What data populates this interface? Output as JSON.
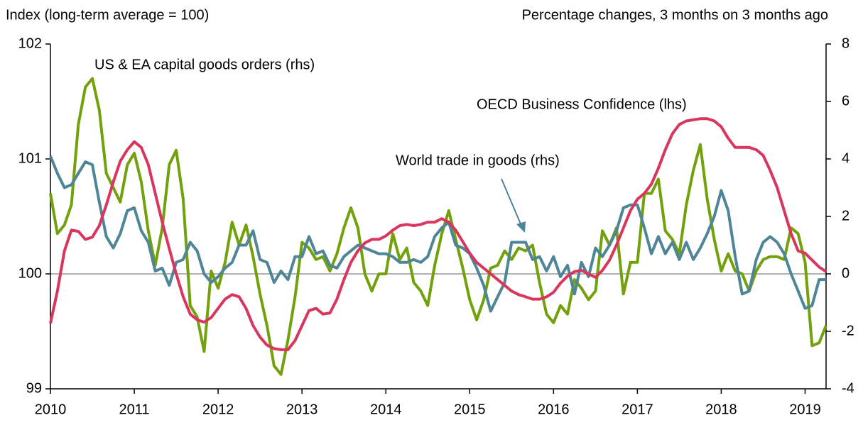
{
  "chart_data": {
    "type": "line",
    "left_axis_label": "Index (long-term average = 100)",
    "right_axis_label": "Percentage changes, 3 months on 3 months ago",
    "x": [
      2010,
      2010.083,
      2010.167,
      2010.25,
      2010.333,
      2010.417,
      2010.5,
      2010.583,
      2010.667,
      2010.75,
      2010.833,
      2010.917,
      2011,
      2011.083,
      2011.167,
      2011.25,
      2011.333,
      2011.417,
      2011.5,
      2011.583,
      2011.667,
      2011.75,
      2011.833,
      2011.917,
      2012,
      2012.083,
      2012.167,
      2012.25,
      2012.333,
      2012.417,
      2012.5,
      2012.583,
      2012.667,
      2012.75,
      2012.833,
      2012.917,
      2013,
      2013.083,
      2013.167,
      2013.25,
      2013.333,
      2013.417,
      2013.5,
      2013.583,
      2013.667,
      2013.75,
      2013.833,
      2013.917,
      2014,
      2014.083,
      2014.167,
      2014.25,
      2014.333,
      2014.417,
      2014.5,
      2014.583,
      2014.667,
      2014.75,
      2014.833,
      2014.917,
      2015,
      2015.083,
      2015.167,
      2015.25,
      2015.333,
      2015.417,
      2015.5,
      2015.583,
      2015.667,
      2015.75,
      2015.833,
      2015.917,
      2016,
      2016.083,
      2016.167,
      2016.25,
      2016.333,
      2016.417,
      2016.5,
      2016.583,
      2016.667,
      2016.75,
      2016.833,
      2016.917,
      2017,
      2017.083,
      2017.167,
      2017.25,
      2017.333,
      2017.417,
      2017.5,
      2017.583,
      2017.667,
      2017.75,
      2017.833,
      2017.917,
      2018,
      2018.083,
      2018.167,
      2018.25,
      2018.333,
      2018.417,
      2018.5,
      2018.583,
      2018.667,
      2018.75,
      2018.833,
      2018.917,
      2019,
      2019.083,
      2019.167,
      2019.25
    ],
    "series": [
      {
        "name": "US & EA capital goods orders (rhs)",
        "color": "#72a10b",
        "axis": "y2",
        "values": [
          2.8,
          1.4,
          1.7,
          2.4,
          5.2,
          6.5,
          6.8,
          5.7,
          3.5,
          3.0,
          2.5,
          3.8,
          4.2,
          3.2,
          1.5,
          0.3,
          1.6,
          3.8,
          4.3,
          2.6,
          -1.1,
          -1.5,
          -2.7,
          0.1,
          -0.5,
          0.4,
          1.8,
          1.0,
          1.7,
          0.6,
          -0.7,
          -1.8,
          -3.2,
          -3.5,
          -2.3,
          -0.8,
          1.1,
          0.9,
          0.5,
          0.6,
          0.1,
          0.7,
          1.6,
          2.3,
          1.6,
          0.0,
          -0.6,
          0.0,
          0.0,
          1.4,
          0.5,
          0.9,
          -0.3,
          -0.6,
          -1.1,
          0.3,
          1.4,
          2.2,
          1.2,
          0.2,
          -0.9,
          -1.6,
          -0.9,
          0.2,
          0.3,
          0.8,
          0.5,
          0.9,
          0.8,
          1.0,
          -0.3,
          -1.4,
          -1.7,
          -1.1,
          -1.4,
          -0.2,
          -0.5,
          -0.9,
          -0.6,
          1.5,
          1.0,
          1.6,
          -0.7,
          0.4,
          0.4,
          2.8,
          2.8,
          3.3,
          1.5,
          1.2,
          0.7,
          2.4,
          3.6,
          4.5,
          2.6,
          1.2,
          0.1,
          0.7,
          0.1,
          0.0,
          -0.6,
          0.1,
          0.5,
          0.6,
          0.6,
          0.5,
          1.6,
          1.4,
          0.4,
          -2.5,
          -2.4,
          -1.8
        ]
      },
      {
        "name": "World trade in goods (rhs)",
        "color": "#4e8597",
        "axis": "y2",
        "values": [
          4.1,
          3.5,
          3.0,
          3.1,
          3.5,
          3.9,
          3.8,
          2.5,
          1.3,
          0.9,
          1.4,
          2.2,
          2.3,
          1.5,
          1.1,
          0.1,
          0.2,
          -0.4,
          0.4,
          0.5,
          1.1,
          0.8,
          0.0,
          -0.3,
          -0.1,
          0.2,
          0.4,
          1.0,
          1.0,
          1.5,
          0.5,
          0.4,
          -0.3,
          0.1,
          -0.2,
          0.6,
          0.6,
          1.3,
          0.7,
          0.8,
          0.3,
          0.2,
          0.6,
          0.8,
          1.0,
          0.9,
          0.8,
          0.7,
          0.7,
          0.6,
          0.4,
          0.4,
          0.5,
          0.4,
          0.6,
          1.3,
          1.6,
          1.8,
          1.0,
          0.9,
          0.7,
          0.2,
          -0.4,
          -1.3,
          -0.8,
          -0.3,
          1.1,
          1.1,
          1.1,
          0.5,
          0.6,
          0.1,
          0.6,
          -0.1,
          0.3,
          -0.7,
          0.4,
          -0.1,
          0.9,
          0.6,
          1.0,
          1.5,
          2.3,
          2.4,
          2.4,
          1.6,
          0.7,
          1.3,
          0.7,
          1.1,
          0.5,
          1.1,
          0.5,
          0.9,
          1.4,
          2.0,
          2.9,
          2.2,
          0.6,
          -0.7,
          -0.6,
          0.5,
          1.1,
          1.3,
          1.1,
          0.7,
          0.0,
          -0.6,
          -1.2,
          -1.1,
          -0.2,
          -0.2
        ]
      },
      {
        "name": "OECD Business Confidence (lhs)",
        "color": "#d9365e",
        "axis": "y",
        "values": [
          99.57,
          99.85,
          100.2,
          100.38,
          100.37,
          100.3,
          100.32,
          100.42,
          100.6,
          100.8,
          100.98,
          101.08,
          101.15,
          101.1,
          100.95,
          100.7,
          100.45,
          100.22,
          100.0,
          99.8,
          99.65,
          99.6,
          99.58,
          99.62,
          99.7,
          99.78,
          99.82,
          99.8,
          99.7,
          99.55,
          99.45,
          99.38,
          99.35,
          99.34,
          99.34,
          99.42,
          99.55,
          99.68,
          99.7,
          99.65,
          99.66,
          99.78,
          99.95,
          100.1,
          100.2,
          100.27,
          100.3,
          100.3,
          100.33,
          100.38,
          100.42,
          100.43,
          100.42,
          100.43,
          100.45,
          100.45,
          100.48,
          100.45,
          100.38,
          100.28,
          100.18,
          100.1,
          100.05,
          100.0,
          99.95,
          99.9,
          99.85,
          99.82,
          99.8,
          99.78,
          99.78,
          99.8,
          99.84,
          99.92,
          99.98,
          100.02,
          100.03,
          100.0,
          99.97,
          100.03,
          100.12,
          100.25,
          100.4,
          100.55,
          100.65,
          100.7,
          100.78,
          100.92,
          101.08,
          101.22,
          101.3,
          101.33,
          101.34,
          101.35,
          101.35,
          101.33,
          101.28,
          101.18,
          101.1,
          101.1,
          101.1,
          101.08,
          101.03,
          100.9,
          100.75,
          100.55,
          100.35,
          100.2,
          100.18,
          100.12,
          100.06,
          100.02
        ]
      }
    ],
    "xlim": [
      2010,
      2019.25
    ],
    "xticks": [
      2010,
      2011,
      2012,
      2013,
      2014,
      2015,
      2016,
      2017,
      2018,
      2019
    ],
    "ylim": [
      99,
      102
    ],
    "yticks": [
      99,
      100,
      101,
      102
    ],
    "y2lim": [
      -4,
      8
    ],
    "y2ticks": [
      -4,
      -2,
      0,
      2,
      4,
      6,
      8
    ],
    "reference_line": 100,
    "grid": false
  }
}
